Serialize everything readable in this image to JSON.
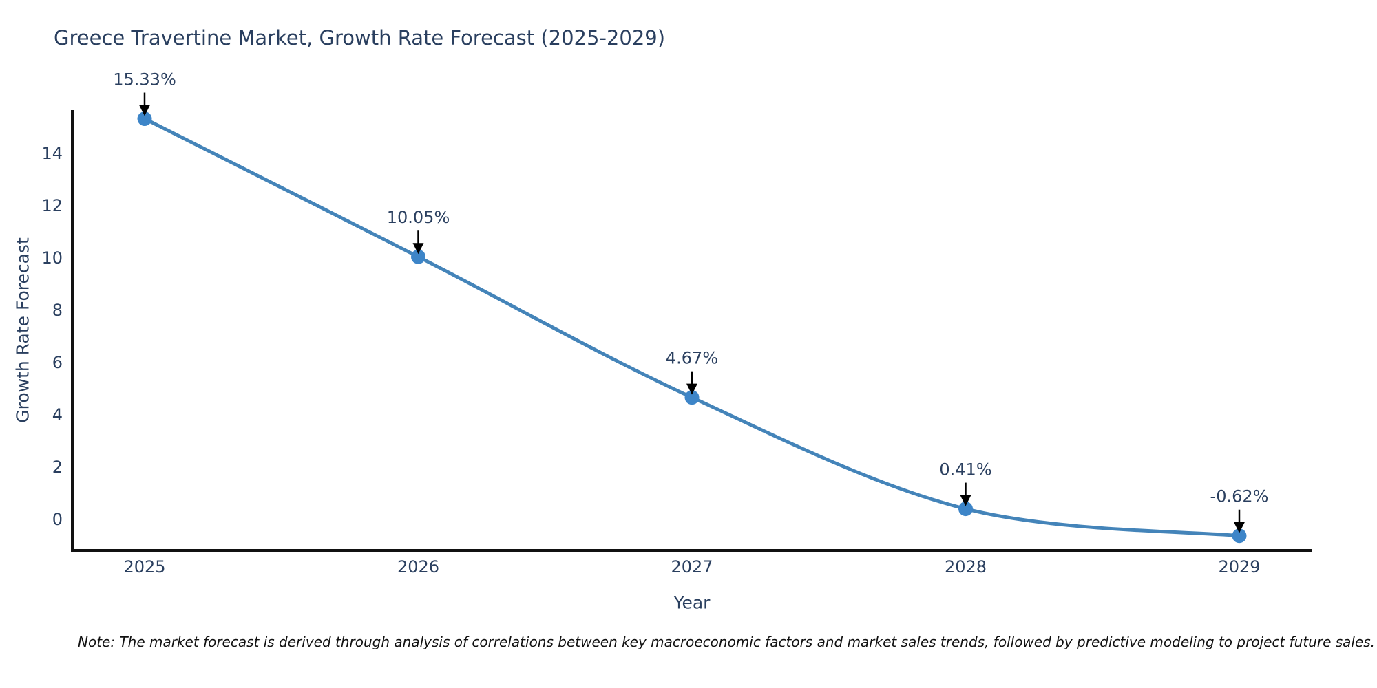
{
  "chart_data": {
    "type": "line",
    "title": "Greece Travertine Market, Growth Rate Forecast (2025-2029)",
    "categories": [
      "2025",
      "2026",
      "2027",
      "2028",
      "2029"
    ],
    "x": [
      2025,
      2026,
      2027,
      2028,
      2029
    ],
    "values": [
      15.33,
      10.05,
      4.67,
      0.41,
      -0.62
    ],
    "point_labels": [
      "15.33%",
      "10.05%",
      "4.67%",
      "0.41%",
      "-0.62%"
    ],
    "xlabel": "Year",
    "ylabel": "Growth Rate Forecast",
    "ylim": [
      -1.18,
      15.66
    ],
    "yticks": [
      0,
      2,
      4,
      6,
      8,
      10,
      12,
      14
    ],
    "line_shape": "spline",
    "grid": false,
    "legend": "none",
    "colors": {
      "line": "#4484b9",
      "marker": "#3d85c8",
      "axis_line": "#111111",
      "chart_text": "#2a3f5f",
      "annotation_arrow": "#000000",
      "background": "#ffffff"
    }
  },
  "note": {
    "text": "Note: The market forecast is derived through analysis of correlations between key macroeconomic factors and market sales trends, followed by predictive modeling to project future sales."
  }
}
